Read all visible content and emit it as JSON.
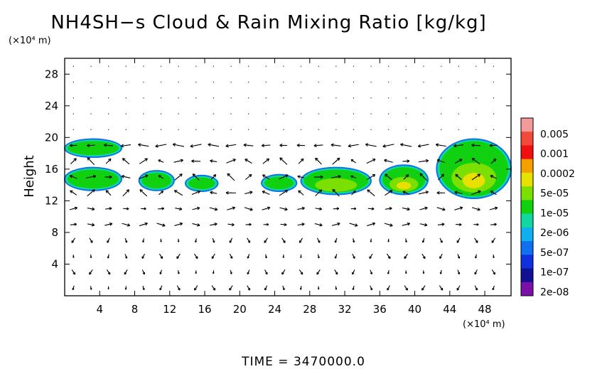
{
  "chart_data": {
    "type": "heatmap",
    "title": "NH4SH−s Cloud & Rain Mixing Ratio [kg/kg]",
    "xlabel": "",
    "ylabel": "Height",
    "x_unit": "(×10⁴ m)",
    "y_unit": "(×10⁴ m)",
    "xlim": [
      0,
      51
    ],
    "ylim": [
      0,
      30
    ],
    "x_ticks": [
      4,
      8,
      12,
      16,
      20,
      24,
      28,
      32,
      36,
      40,
      44,
      48
    ],
    "x_tick_labels": [
      "4",
      "8",
      "12",
      "16",
      "20",
      "24",
      "28",
      "32",
      "36",
      "40",
      "44",
      "48"
    ],
    "y_ticks": [
      4,
      8,
      12,
      16,
      20,
      24,
      28
    ],
    "y_tick_labels": [
      "4",
      "8",
      "12",
      "16",
      "20",
      "24",
      "28"
    ],
    "grid": true,
    "colorbar": {
      "levels": [
        "0.005",
        "0.001",
        "0.0002",
        "5e-05",
        "1e-05",
        "2e-06",
        "5e-07",
        "1e-07",
        "2e-08"
      ],
      "colors": [
        "#f49a9a",
        "#f24a3a",
        "#f01010",
        "#f5a000",
        "#e8e000",
        "#7be000",
        "#10d010",
        "#10d8a0",
        "#10b0f0",
        "#1070f0",
        "#1030e0",
        "#101090",
        "#7a10a8"
      ]
    },
    "cloud_regions": [
      {
        "x": [
          0,
          6.5
        ],
        "y": [
          17.5,
          19.8
        ],
        "level": "1e-05"
      },
      {
        "x": [
          0,
          6.5
        ],
        "y": [
          13.3,
          16.2
        ],
        "level": "1e-05"
      },
      {
        "x": [
          8.5,
          12.5
        ],
        "y": [
          13.3,
          15.8
        ],
        "level": "1e-05"
      },
      {
        "x": [
          13.8,
          17.5
        ],
        "y": [
          13.2,
          15.2
        ],
        "level": "1e-05"
      },
      {
        "x": [
          22.5,
          26.5
        ],
        "y": [
          13.2,
          15.3
        ],
        "level": "1e-05"
      },
      {
        "x": [
          27,
          35
        ],
        "y": [
          12.8,
          16.2
        ],
        "level": "5e-05"
      },
      {
        "x": [
          36,
          41.5
        ],
        "y": [
          12.8,
          16.5
        ],
        "level": "0.0002"
      },
      {
        "x": [
          42.5,
          51
        ],
        "y": [
          12.3,
          19.8
        ],
        "level": "0.0002"
      }
    ],
    "wind_arrows": "vector field (not quantified)"
  },
  "footer": {
    "time_label": "TIME  =  3470000.0"
  }
}
